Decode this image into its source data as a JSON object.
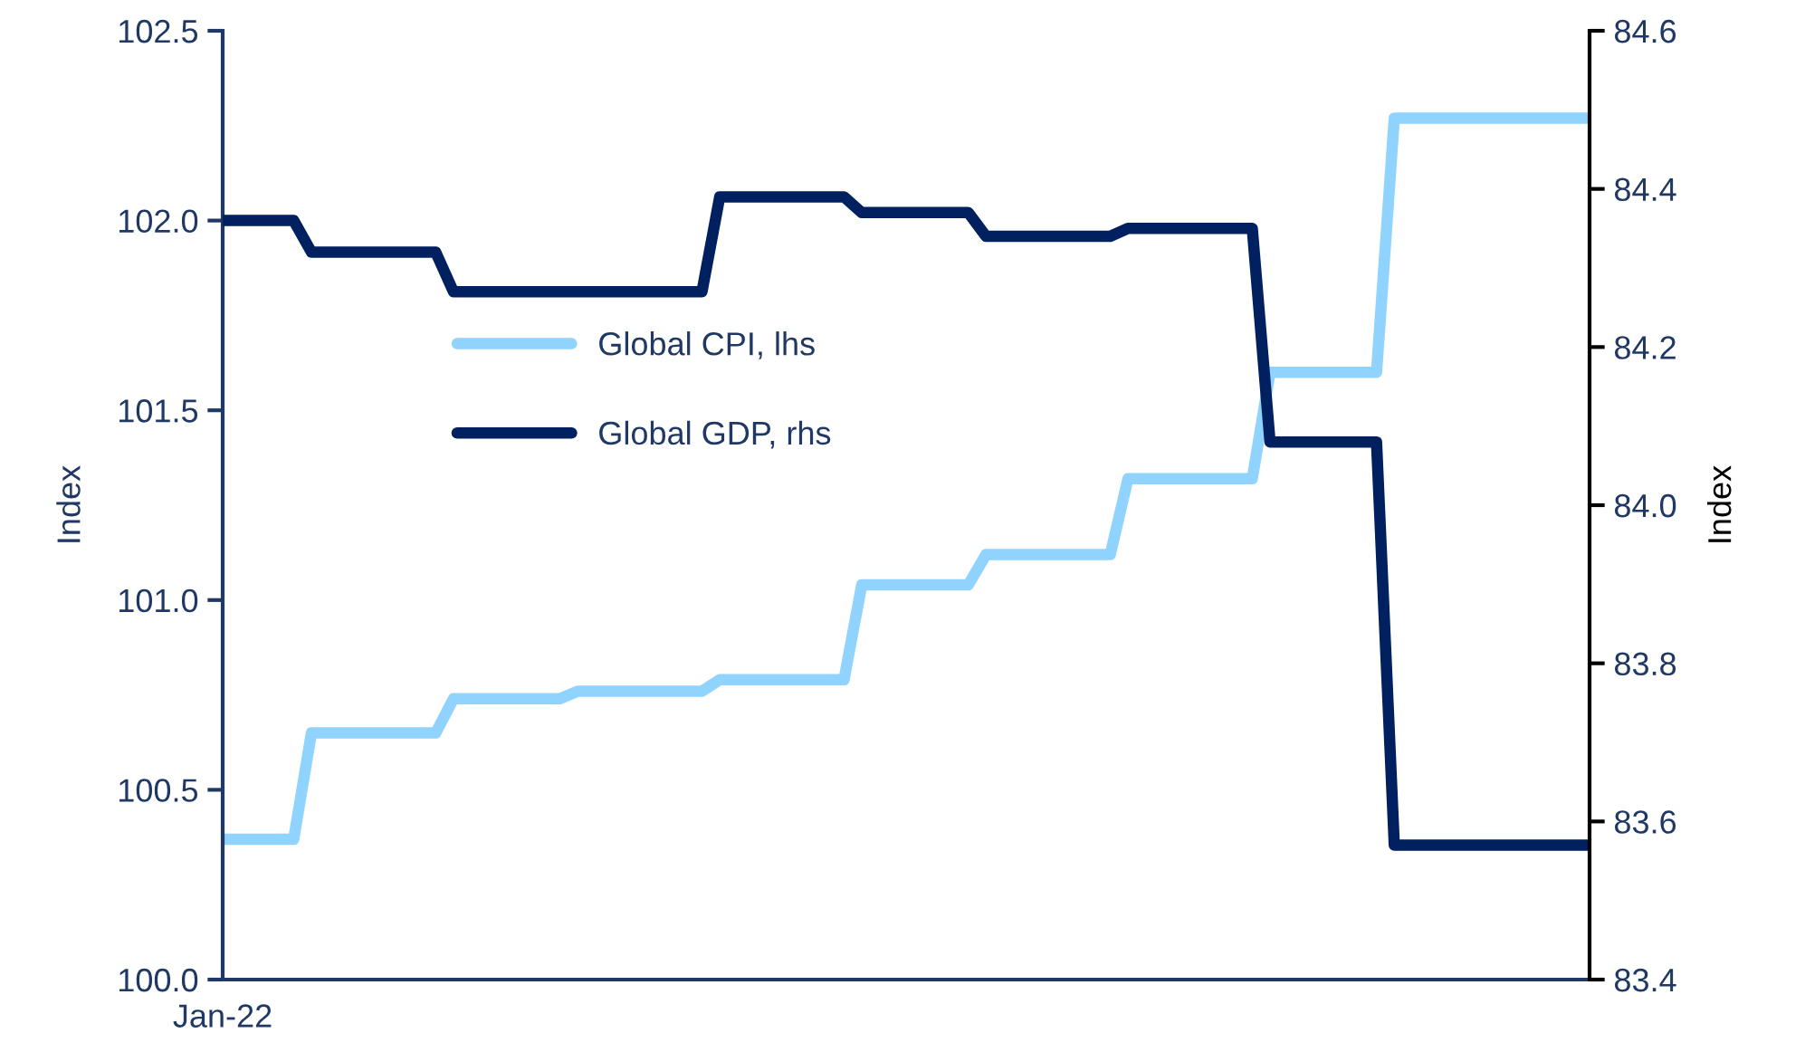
{
  "chart_data": {
    "type": "line",
    "ylabel": "Index",
    "y2label": "Index",
    "categories": [
      "Jan-22",
      null,
      null,
      null,
      null,
      null,
      null,
      null,
      null,
      null,
      null,
      null,
      null,
      null,
      null,
      null,
      null,
      null,
      null,
      null,
      null,
      null,
      null,
      null,
      null,
      null,
      null,
      null,
      null,
      null,
      null,
      null,
      null,
      null,
      null,
      null,
      null,
      null,
      null,
      null,
      null,
      null,
      null,
      null,
      null,
      null,
      null,
      null,
      null,
      null,
      null,
      null,
      null,
      null,
      null,
      null,
      null,
      null,
      null,
      null,
      null,
      null,
      null,
      null,
      null,
      null,
      null,
      null,
      null,
      null,
      null,
      null,
      null,
      null,
      null,
      null,
      null,
      null
    ],
    "ylim": [
      100.0,
      102.5
    ],
    "yticks": [
      {
        "value": 100.0,
        "label": "100.0"
      },
      {
        "value": 100.5,
        "label": "100.5"
      },
      {
        "value": 101.0,
        "label": "101.0"
      },
      {
        "value": 101.5,
        "label": "101.5"
      },
      {
        "value": 102.0,
        "label": "102.0"
      },
      {
        "value": 102.5,
        "label": "102.5"
      }
    ],
    "y2lim": [
      83.4,
      84.6
    ],
    "y2ticks": [
      {
        "value": 83.4,
        "label": "83.4"
      },
      {
        "value": 83.6,
        "label": "83.6"
      },
      {
        "value": 83.8,
        "label": "83.8"
      },
      {
        "value": 84.0,
        "label": "84.0"
      },
      {
        "value": 84.2,
        "label": "84.2"
      },
      {
        "value": 84.4,
        "label": "84.4"
      },
      {
        "value": 84.6,
        "label": "84.6"
      }
    ],
    "legend": "left",
    "line_style": "solid",
    "series": [
      {
        "name": "Global CPI, lhs",
        "color": "#8fd3fe",
        "values": [
          100.37,
          100.37,
          100.37,
          100.37,
          100.37,
          100.65,
          100.65,
          100.65,
          100.65,
          100.65,
          100.65,
          100.65,
          100.65,
          100.74,
          100.74,
          100.74,
          100.74,
          100.74,
          100.74,
          100.74,
          100.76,
          100.76,
          100.76,
          100.76,
          100.76,
          100.76,
          100.76,
          100.76,
          100.79,
          100.79,
          100.79,
          100.79,
          100.79,
          100.79,
          100.79,
          100.79,
          101.04,
          101.04,
          101.04,
          101.04,
          101.04,
          101.04,
          101.04,
          101.12,
          101.12,
          101.12,
          101.12,
          101.12,
          101.12,
          101.12,
          101.12,
          101.32,
          101.32,
          101.32,
          101.32,
          101.32,
          101.32,
          101.32,
          101.32,
          101.6,
          101.6,
          101.6,
          101.6,
          101.6,
          101.6,
          101.6,
          102.27,
          102.27,
          102.27,
          102.27,
          102.27,
          102.27,
          102.27,
          102.27,
          102.27,
          102.27,
          102.27,
          102.27
        ]
      },
      {
        "name": "Global GDP, rhs",
        "color": "#002060",
        "axis": "y2",
        "values": [
          84.36,
          84.36,
          84.36,
          84.36,
          84.36,
          84.32,
          84.32,
          84.32,
          84.32,
          84.32,
          84.32,
          84.32,
          84.32,
          84.27,
          84.27,
          84.27,
          84.27,
          84.27,
          84.27,
          84.27,
          84.27,
          84.27,
          84.27,
          84.27,
          84.27,
          84.27,
          84.27,
          84.27,
          84.39,
          84.39,
          84.39,
          84.39,
          84.39,
          84.39,
          84.39,
          84.39,
          84.37,
          84.37,
          84.37,
          84.37,
          84.37,
          84.37,
          84.37,
          84.34,
          84.34,
          84.34,
          84.34,
          84.34,
          84.34,
          84.34,
          84.34,
          84.35,
          84.35,
          84.35,
          84.35,
          84.35,
          84.35,
          84.35,
          84.35,
          84.08,
          84.08,
          84.08,
          84.08,
          84.08,
          84.08,
          84.08,
          83.57,
          83.57,
          83.57,
          83.57,
          83.57,
          83.57,
          83.57,
          83.57,
          83.57,
          83.57,
          83.57,
          83.57
        ]
      }
    ]
  }
}
